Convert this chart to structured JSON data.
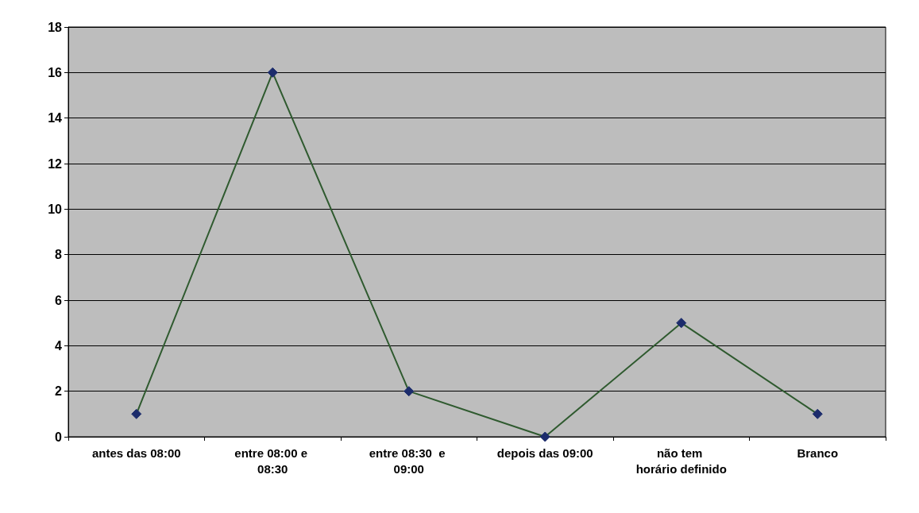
{
  "chart_data": {
    "type": "line",
    "categories": [
      "antes das 08:00",
      "entre 08:00 e 08:30",
      "entre 08:30  e 09:00",
      "depois das 09:00",
      "não tem horário definido",
      "Branco"
    ],
    "series": [
      {
        "color": "#2f5a2f",
        "values": [
          1,
          16,
          2,
          0,
          5,
          1
        ]
      }
    ],
    "ylim": [
      0,
      18
    ],
    "yticks": [
      0,
      2,
      4,
      6,
      8,
      10,
      12,
      14,
      16,
      18
    ],
    "grid": "y",
    "marker": "diamond",
    "line_style": "solid"
  }
}
